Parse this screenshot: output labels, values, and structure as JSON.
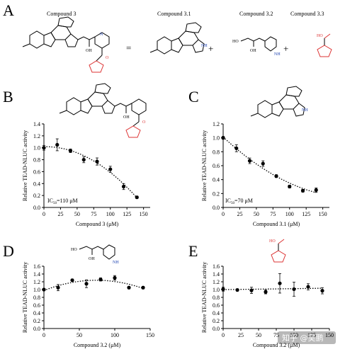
{
  "header": {
    "panel_label": "A",
    "names": [
      "Compound 3",
      "Compound 3.1",
      "Compound 3.2",
      "Compound 3.3"
    ],
    "equals": "=",
    "plus": "+"
  },
  "molecule_text": {
    "oh": "OH",
    "ho": "HO",
    "nh": "NH",
    "n": "N",
    "o": "O"
  },
  "watermark": "知乎 @吴鹏",
  "chart_data": [
    {
      "panel": "B",
      "type": "scatter",
      "ylabel": "Relative TEAD-NLUC activity",
      "xlabel": "Compound 3 (μM)",
      "xlim": [
        0,
        160
      ],
      "ylim": [
        0,
        1.4
      ],
      "xticks": [
        0,
        25,
        50,
        75,
        100,
        125,
        150
      ],
      "yticks": [
        0,
        0.2,
        0.4,
        0.6,
        0.8,
        1.0,
        1.2,
        1.4
      ],
      "x": [
        0,
        20,
        40,
        60,
        80,
        100,
        120,
        140
      ],
      "y": [
        1.0,
        1.05,
        0.95,
        0.8,
        0.77,
        0.64,
        0.35,
        0.17
      ],
      "err": [
        0.04,
        0.1,
        0.03,
        0.05,
        0.06,
        0.05,
        0.05,
        0.02
      ],
      "trend": "dotted quadratic fit",
      "annotation": {
        "prefix": "IC",
        "sub": "50",
        "suffix": "=110 μM"
      }
    },
    {
      "panel": "C",
      "type": "scatter",
      "ylabel": "Relative TEAD-NLUC activity",
      "xlabel": "Compound 3.1 (μM)",
      "xlim": [
        0,
        160
      ],
      "ylim": [
        0,
        1.2
      ],
      "xticks": [
        0,
        25,
        50,
        75,
        100,
        125,
        150
      ],
      "yticks": [
        0,
        0.2,
        0.4,
        0.6,
        0.8,
        1.0,
        1.2
      ],
      "x": [
        0,
        20,
        40,
        60,
        80,
        100,
        120,
        140
      ],
      "y": [
        1.0,
        0.85,
        0.67,
        0.63,
        0.45,
        0.3,
        0.24,
        0.25
      ],
      "err": [
        0.02,
        0.05,
        0.04,
        0.04,
        0.02,
        0.02,
        0.02,
        0.03
      ],
      "trend": "dotted quadratic fit",
      "annotation": {
        "prefix": "IC",
        "sub": "50",
        "suffix": "=70 μM"
      }
    },
    {
      "panel": "D",
      "type": "scatter",
      "ylabel": "Relative TEAD-NLUC activity",
      "xlabel": "Compound 3.2 (μM)",
      "xlim": [
        0,
        150
      ],
      "ylim": [
        0,
        1.6
      ],
      "xticks": [
        0,
        50,
        100,
        150
      ],
      "yticks": [
        0,
        0.2,
        0.4,
        0.6,
        0.8,
        1.0,
        1.2,
        1.4,
        1.6
      ],
      "x": [
        0,
        20,
        40,
        60,
        80,
        100,
        120,
        140
      ],
      "y": [
        1.0,
        1.05,
        1.24,
        1.15,
        1.26,
        1.3,
        1.05,
        1.05
      ],
      "err": [
        0.03,
        0.08,
        0.03,
        0.1,
        0.04,
        0.06,
        0.03,
        0.03
      ],
      "trend": "dotted quadratic fit"
    },
    {
      "panel": "E",
      "type": "scatter",
      "ylabel": "Relative TEAD-NLUC activity",
      "xlabel": "Compound 3.2 (μM)",
      "xlim": [
        0,
        150
      ],
      "ylim": [
        0,
        1.6
      ],
      "xticks": [
        0,
        25,
        50,
        75,
        100,
        125,
        150
      ],
      "yticks": [
        0,
        0.2,
        0.4,
        0.6,
        0.8,
        1.0,
        1.2,
        1.4,
        1.6
      ],
      "x": [
        0,
        20,
        40,
        60,
        80,
        100,
        120,
        140
      ],
      "y": [
        1.01,
        0.99,
        0.98,
        0.94,
        1.16,
        1.01,
        1.07,
        0.97
      ],
      "err": [
        0.05,
        0.03,
        0.08,
        0.05,
        0.25,
        0.18,
        0.08,
        0.08
      ],
      "trend": "dotted linear fit"
    }
  ]
}
